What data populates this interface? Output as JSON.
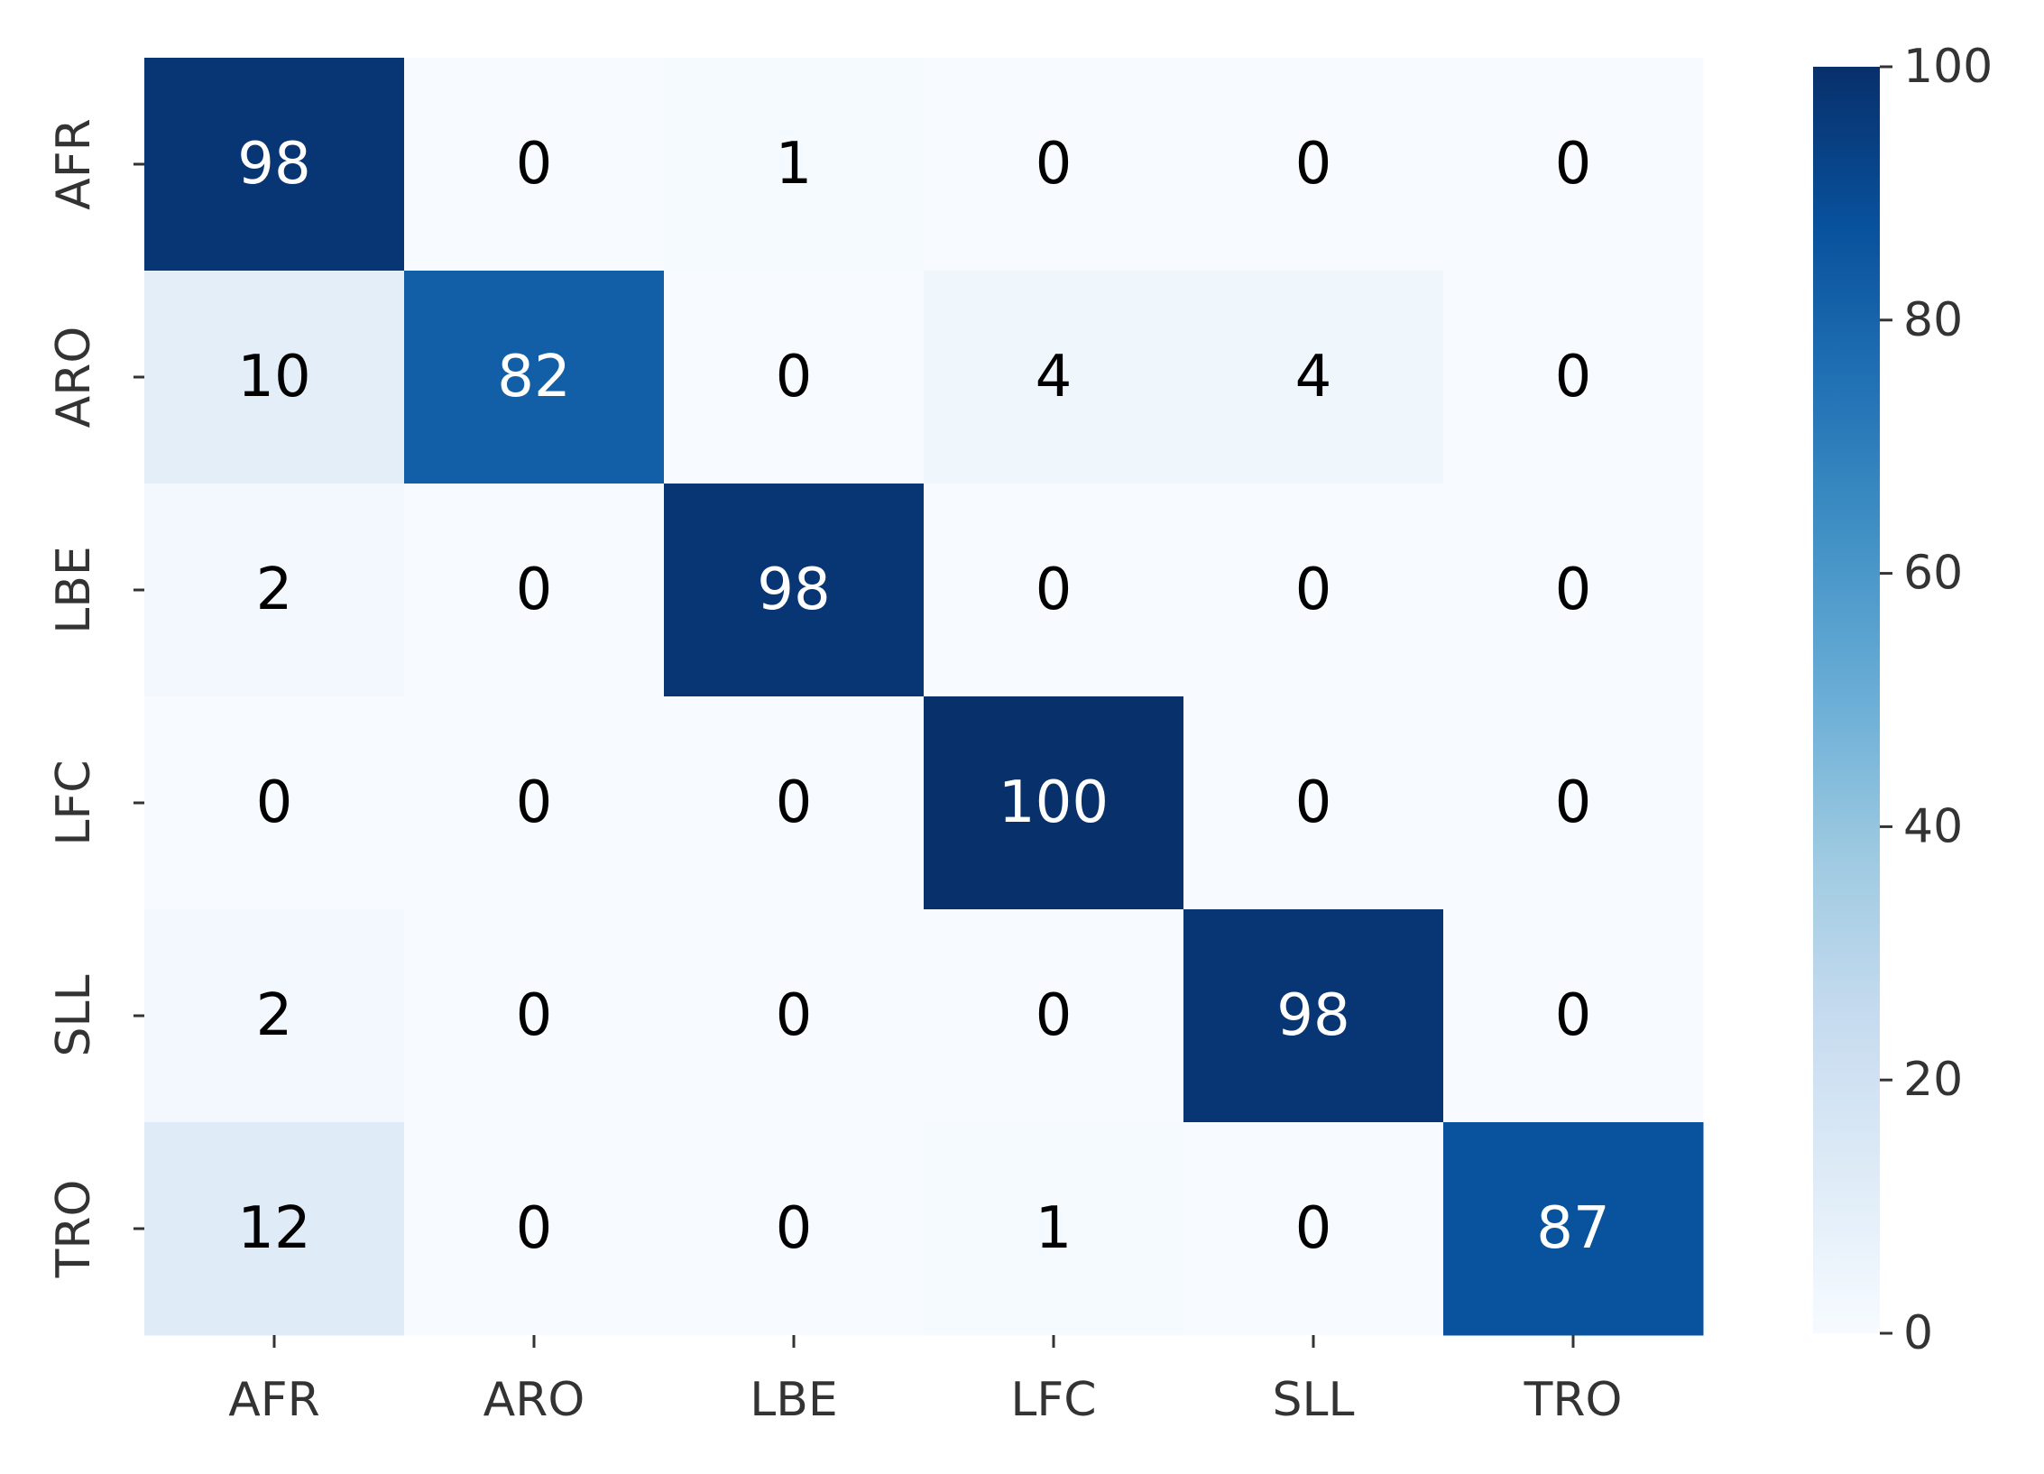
{
  "chart_data": {
    "type": "heatmap",
    "title": "",
    "xlabel": "",
    "ylabel": "",
    "x_categories": [
      "AFR",
      "ARO",
      "LBE",
      "LFC",
      "SLL",
      "TRO"
    ],
    "y_categories": [
      "AFR",
      "ARO",
      "LBE",
      "LFC",
      "SLL",
      "TRO"
    ],
    "values": [
      [
        98,
        0,
        1,
        0,
        0,
        0
      ],
      [
        10,
        82,
        0,
        4,
        4,
        0
      ],
      [
        2,
        0,
        98,
        0,
        0,
        0
      ],
      [
        0,
        0,
        0,
        100,
        0,
        0
      ],
      [
        2,
        0,
        0,
        0,
        98,
        0
      ],
      [
        12,
        0,
        0,
        1,
        0,
        87
      ]
    ],
    "colormap": "Blues",
    "colorbar": {
      "range": [
        0,
        100
      ],
      "ticks": [
        0,
        20,
        40,
        60,
        80,
        100
      ]
    },
    "colors": {
      "low": "#f7fbff",
      "high": "#08306b",
      "dark_text": "#000000",
      "light_text": "#ffffff"
    }
  }
}
